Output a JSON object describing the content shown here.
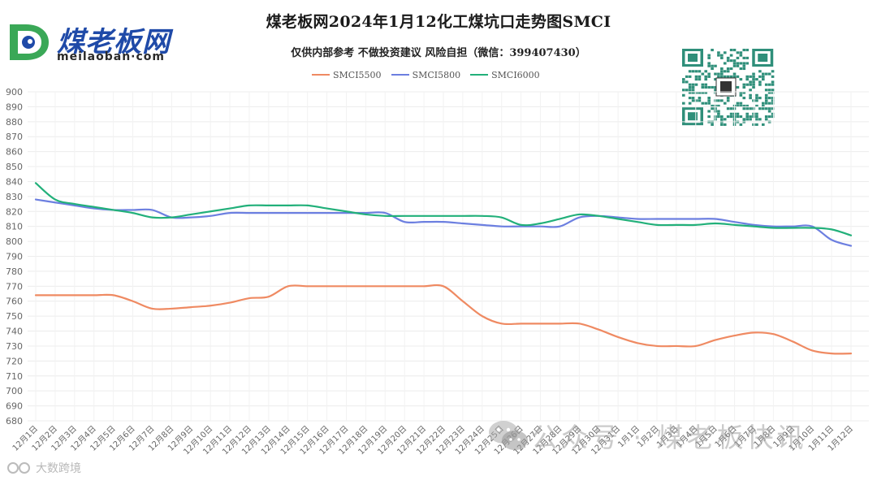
{
  "header": {
    "title": "煤老板网2024年1月12化工煤坑口走势图SMCI",
    "subtitle": "仅供内部参考 不做投资建议 风险自担（微信：399407430）"
  },
  "logo": {
    "cn_text": "煤老板网",
    "en_text": "meilaoban·com"
  },
  "watermarks": {
    "left_text": "大数跨境",
    "right_text": "公众号 · 煤老板快讯"
  },
  "colors": {
    "SMCI5500": "#ef8a62",
    "SMCI5800": "#6c7fe0",
    "SMCI6000": "#22b07a"
  },
  "chart_data": {
    "type": "line",
    "title": "煤老板网2024年1月12化工煤坑口走势图SMCI",
    "ylim": [
      680,
      900
    ],
    "ytick_step": 10,
    "grid": true,
    "legend_position": "top-center",
    "x": [
      "12月1日",
      "12月2日",
      "12月3日",
      "12月4日",
      "12月5日",
      "12月6日",
      "12月7日",
      "12月8日",
      "12月9日",
      "12月10日",
      "12月11日",
      "12月12日",
      "12月13日",
      "12月14日",
      "12月15日",
      "12月16日",
      "12月17日",
      "12月18日",
      "12月19日",
      "12月20日",
      "12月21日",
      "12月22日",
      "12月23日",
      "12月24日",
      "12月25日",
      "12月26日",
      "12月27日",
      "12月28日",
      "12月29日",
      "12月30日",
      "12月31日",
      "1月1日",
      "1月2日",
      "1月3日",
      "1月4日",
      "1月5日",
      "1月6日",
      "1月7日",
      "1月8日",
      "1月9日",
      "1月10日",
      "1月11日",
      "1月12日"
    ],
    "series": [
      {
        "name": "SMCI5500",
        "values": [
          764,
          764,
          764,
          764,
          764,
          760,
          755,
          755,
          756,
          757,
          759,
          762,
          763,
          770,
          770,
          770,
          770,
          770,
          770,
          770,
          770,
          770,
          760,
          750,
          745,
          745,
          745,
          745,
          745,
          741,
          736,
          732,
          730,
          730,
          730,
          734,
          737,
          739,
          738,
          733,
          727,
          725,
          725
        ]
      },
      {
        "name": "SMCI5800",
        "values": [
          828,
          826,
          824,
          822,
          821,
          821,
          821,
          816,
          816,
          817,
          819,
          819,
          819,
          819,
          819,
          819,
          819,
          819,
          819,
          813,
          813,
          813,
          812,
          811,
          810,
          810,
          810,
          810,
          816,
          817,
          816,
          815,
          815,
          815,
          815,
          815,
          813,
          811,
          810,
          810,
          810,
          801,
          797
        ]
      },
      {
        "name": "SMCI6000",
        "values": [
          839,
          828,
          825,
          823,
          821,
          819,
          816,
          816,
          818,
          820,
          822,
          824,
          824,
          824,
          824,
          822,
          820,
          818,
          817,
          817,
          817,
          817,
          817,
          817,
          816,
          811,
          812,
          815,
          818,
          817,
          815,
          813,
          811,
          811,
          811,
          812,
          811,
          810,
          809,
          809,
          809,
          808,
          804
        ]
      }
    ]
  }
}
